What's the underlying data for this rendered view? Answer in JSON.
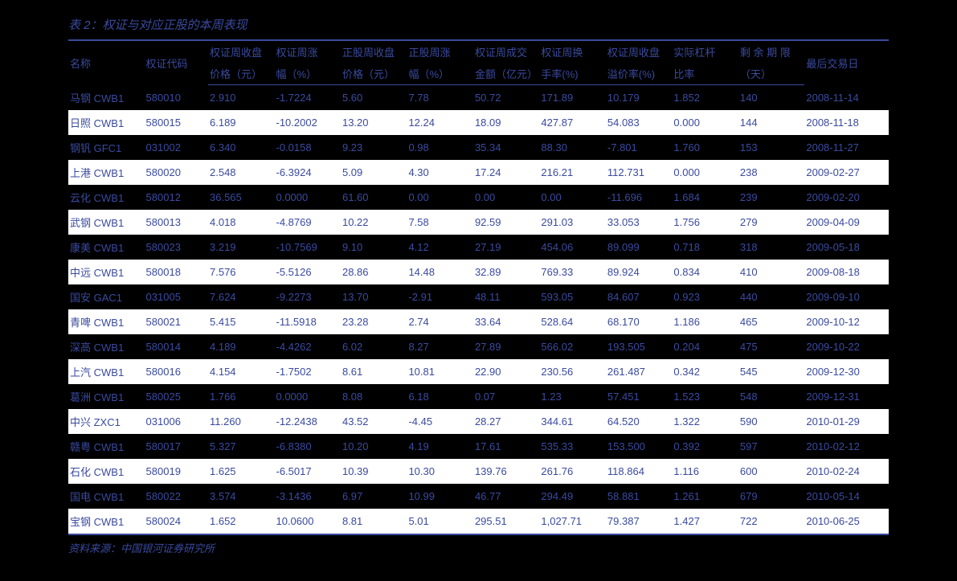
{
  "title": "表 2：权证与对应正股的本周表现",
  "source": "资料来源：中国银河证券研究所",
  "headers": {
    "row1": {
      "name": "名称",
      "code": "权证代码",
      "c1": "权证周收盘",
      "c2": "权证周涨",
      "c3": "正股周收盘",
      "c4": "正股周涨",
      "c5": "权证周成交",
      "c6": "权证周换",
      "c7": "权证周收盘",
      "c8": "实际杠杆",
      "c9": "剩 余 期 限",
      "last": "最后交易日"
    },
    "row2": {
      "c1": "价格（元）",
      "c2": "幅（%）",
      "c3": "价格（元）",
      "c4": "幅（%）",
      "c5": "金额（亿元）",
      "c6": "手率(%)",
      "c7": "溢价率(%)",
      "c8": "比率",
      "c9": "（天）"
    }
  },
  "rows": [
    {
      "name": "马钢 CWB1",
      "code": "580010",
      "c1": "2.910",
      "c2": "-1.7224",
      "c3": "5.60",
      "c4": "7.78",
      "c5": "50.72",
      "c6": "171.89",
      "c7": "10.179",
      "c8": "1.852",
      "c9": "140",
      "last": "2008-11-14"
    },
    {
      "name": "日照 CWB1",
      "code": "580015",
      "c1": "6.189",
      "c2": "-10.2002",
      "c3": "13.20",
      "c4": "12.24",
      "c5": "18.09",
      "c6": "427.87",
      "c7": "54.083",
      "c8": "0.000",
      "c9": "144",
      "last": "2008-11-18"
    },
    {
      "name": "钢钒 GFC1",
      "code": "031002",
      "c1": "6.340",
      "c2": "-0.0158",
      "c3": "9.23",
      "c4": "0.98",
      "c5": "35.34",
      "c6": "88.30",
      "c7": "-7.801",
      "c8": "1.760",
      "c9": "153",
      "last": "2008-11-27"
    },
    {
      "name": "上港 CWB1",
      "code": "580020",
      "c1": "2.548",
      "c2": "-6.3924",
      "c3": "5.09",
      "c4": "4.30",
      "c5": "17.24",
      "c6": "216.21",
      "c7": "112.731",
      "c8": "0.000",
      "c9": "238",
      "last": "2009-02-27"
    },
    {
      "name": "云化 CWB1",
      "code": "580012",
      "c1": "36.565",
      "c2": "0.0000",
      "c3": "61.60",
      "c4": "0.00",
      "c5": "0.00",
      "c6": "0.00",
      "c7": "-11.696",
      "c8": "1.684",
      "c9": "239",
      "last": "2009-02-20"
    },
    {
      "name": "武钢 CWB1",
      "code": "580013",
      "c1": "4.018",
      "c2": "-4.8769",
      "c3": "10.22",
      "c4": "7.58",
      "c5": "92.59",
      "c6": "291.03",
      "c7": "33.053",
      "c8": "1.756",
      "c9": "279",
      "last": "2009-04-09"
    },
    {
      "name": "康美 CWB1",
      "code": "580023",
      "c1": "3.219",
      "c2": "-10.7569",
      "c3": "9.10",
      "c4": "4.12",
      "c5": "27.19",
      "c6": "454.06",
      "c7": "89.099",
      "c8": "0.718",
      "c9": "318",
      "last": "2009-05-18"
    },
    {
      "name": "中远 CWB1",
      "code": "580018",
      "c1": "7.576",
      "c2": "-5.5126",
      "c3": "28.86",
      "c4": "14.48",
      "c5": "32.89",
      "c6": "769.33",
      "c7": "89.924",
      "c8": "0.834",
      "c9": "410",
      "last": "2009-08-18"
    },
    {
      "name": "国安 GAC1",
      "code": "031005",
      "c1": "7.624",
      "c2": "-9.2273",
      "c3": "13.70",
      "c4": "-2.91",
      "c5": "48.11",
      "c6": "593.05",
      "c7": "84.607",
      "c8": "0.923",
      "c9": "440",
      "last": "2009-09-10"
    },
    {
      "name": "青啤 CWB1",
      "code": "580021",
      "c1": "5.415",
      "c2": "-11.5918",
      "c3": "23.28",
      "c4": "2.74",
      "c5": "33.64",
      "c6": "528.64",
      "c7": "68.170",
      "c8": "1.186",
      "c9": "465",
      "last": "2009-10-12"
    },
    {
      "name": "深高 CWB1",
      "code": "580014",
      "c1": "4.189",
      "c2": "-4.4262",
      "c3": "6.02",
      "c4": "8.27",
      "c5": "27.89",
      "c6": "566.02",
      "c7": "193.505",
      "c8": "0.204",
      "c9": "475",
      "last": "2009-10-22"
    },
    {
      "name": "上汽 CWB1",
      "code": "580016",
      "c1": "4.154",
      "c2": "-1.7502",
      "c3": "8.61",
      "c4": "10.81",
      "c5": "22.90",
      "c6": "230.56",
      "c7": "261.487",
      "c8": "0.342",
      "c9": "545",
      "last": "2009-12-30"
    },
    {
      "name": "葛洲 CWB1",
      "code": "580025",
      "c1": "1.766",
      "c2": "0.0000",
      "c3": "8.08",
      "c4": "6.18",
      "c5": "0.07",
      "c6": "1.23",
      "c7": "57.451",
      "c8": "1.523",
      "c9": "548",
      "last": "2009-12-31"
    },
    {
      "name": "中兴 ZXC1",
      "code": "031006",
      "c1": "11.260",
      "c2": "-12.2438",
      "c3": "43.52",
      "c4": "-4.45",
      "c5": "28.27",
      "c6": "344.61",
      "c7": "64.520",
      "c8": "1.322",
      "c9": "590",
      "last": "2010-01-29"
    },
    {
      "name": "赣粤 CWB1",
      "code": "580017",
      "c1": "5.327",
      "c2": "-6.8380",
      "c3": "10.20",
      "c4": "4.19",
      "c5": "17.61",
      "c6": "535.33",
      "c7": "153.500",
      "c8": "0.392",
      "c9": "597",
      "last": "2010-02-12"
    },
    {
      "name": "石化 CWB1",
      "code": "580019",
      "c1": "1.625",
      "c2": "-6.5017",
      "c3": "10.39",
      "c4": "10.30",
      "c5": "139.76",
      "c6": "261.76",
      "c7": "118.864",
      "c8": "1.116",
      "c9": "600",
      "last": "2010-02-24"
    },
    {
      "name": "国电 CWB1",
      "code": "580022",
      "c1": "3.574",
      "c2": "-3.1436",
      "c3": "6.97",
      "c4": "10.99",
      "c5": "46.77",
      "c6": "294.49",
      "c7": "58.881",
      "c8": "1.261",
      "c9": "679",
      "last": "2010-05-14"
    },
    {
      "name": "宝钢 CWB1",
      "code": "580024",
      "c1": "1.652",
      "c2": "10.0600",
      "c3": "8.81",
      "c4": "5.01",
      "c5": "295.51",
      "c6": "1,027.71",
      "c7": "79.387",
      "c8": "1.427",
      "c9": "722",
      "last": "2010-06-25"
    }
  ]
}
